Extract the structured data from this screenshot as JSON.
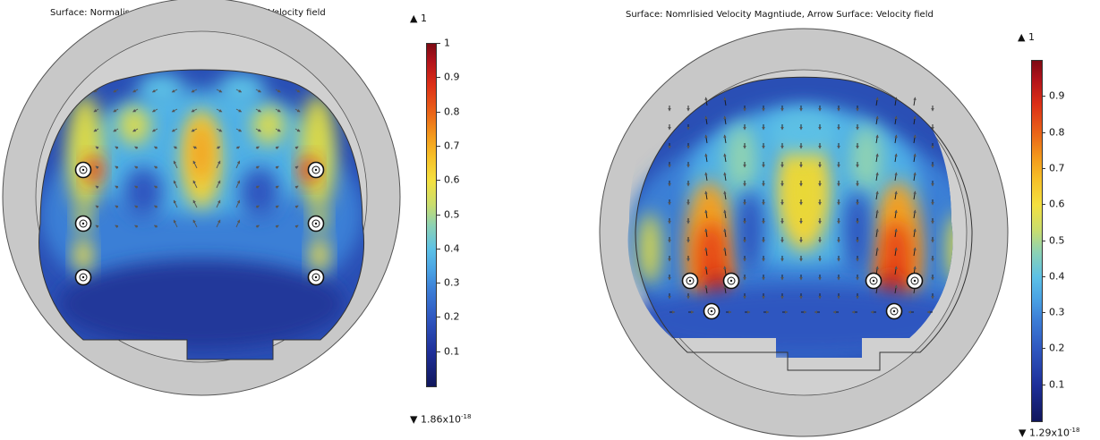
{
  "chart_data": [
    {
      "type": "heatmap",
      "title": "Surface: Normalised Air Velocity, Arrow Surface: Velocity field",
      "colorbar": {
        "max_label": "1",
        "min_label": "1.86",
        "min_exponent": "-18",
        "ticks": [
          "0.1",
          "0.2",
          "0.3",
          "0.4",
          "0.5",
          "0.6",
          "0.7",
          "0.8",
          "0.9",
          "1"
        ],
        "tick_values": [
          0.1,
          0.2,
          0.3,
          0.4,
          0.5,
          0.6,
          0.7,
          0.8,
          0.9,
          1.0
        ],
        "range": [
          0,
          1
        ]
      },
      "colormap_stops": [
        "#10165c",
        "#2f57c0",
        "#4aa3e4",
        "#8dd2b3",
        "#f4e040",
        "#f39a1c",
        "#dc2f17",
        "#7d0a13"
      ]
    },
    {
      "type": "heatmap",
      "title": "Surface: Nomrlisied Velocity Magntiude,  Arrow Surface: Velocity field",
      "colorbar": {
        "max_label": "1",
        "min_label": "1.29",
        "min_exponent": "-18",
        "ticks": [
          "0.1",
          "0.2",
          "0.3",
          "0.4",
          "0.5",
          "0.6",
          "0.7",
          "0.8",
          "0.9"
        ],
        "tick_values": [
          0.1,
          0.2,
          0.3,
          0.4,
          0.5,
          0.6,
          0.7,
          0.8,
          0.9
        ],
        "range": [
          0,
          1
        ]
      },
      "colormap_stops": [
        "#10165c",
        "#2f57c0",
        "#4aa3e4",
        "#8dd2b3",
        "#f4e040",
        "#f39a1c",
        "#dc2f17",
        "#7d0a13"
      ]
    }
  ]
}
